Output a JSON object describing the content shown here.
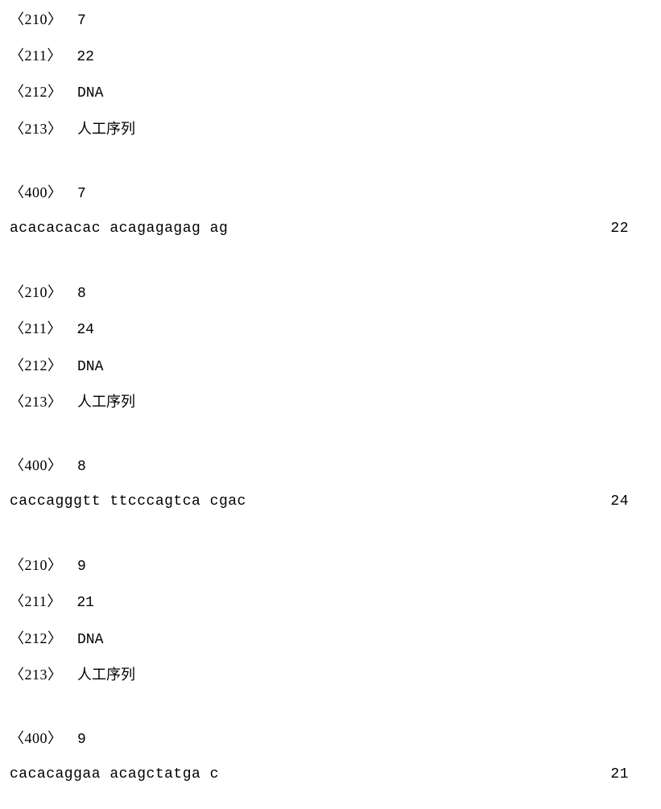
{
  "entries": [
    {
      "f210": "7",
      "f211": "22",
      "f212": "DNA",
      "f213": "人工序列",
      "f400": "7",
      "sequence": "acacacacac acagagagag ag",
      "seqlen": "22"
    },
    {
      "f210": "8",
      "f211": "24",
      "f212": "DNA",
      "f213": "人工序列",
      "f400": "8",
      "sequence": "caccagggtt ttcccagtca cgac",
      "seqlen": "24"
    },
    {
      "f210": "9",
      "f211": "21",
      "f212": "DNA",
      "f213": "人工序列",
      "f400": "9",
      "sequence": "cacacaggaa acagctatga c",
      "seqlen": "21"
    }
  ],
  "labels": {
    "t210": "〈210〉",
    "t211": "〈211〉",
    "t212": "〈212〉",
    "t213": "〈213〉",
    "t400": "〈400〉"
  }
}
